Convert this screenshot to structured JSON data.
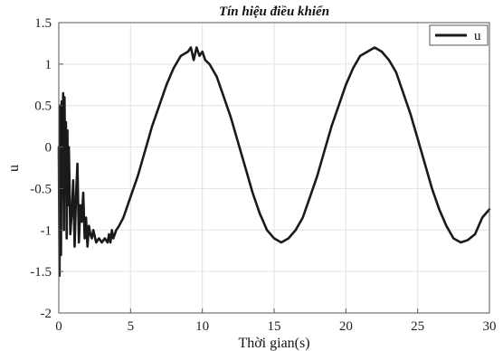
{
  "chart_data": {
    "type": "line",
    "title": "Tín hiệu điều khiển",
    "xlabel": "Thời gian(s)",
    "ylabel": "u",
    "xlim": [
      0,
      30
    ],
    "ylim": [
      -2,
      1.5
    ],
    "xticks": [
      0,
      5,
      10,
      15,
      20,
      25,
      30
    ],
    "yticks": [
      -2,
      -1.5,
      -1,
      -0.5,
      0,
      0.5,
      1,
      1.5
    ],
    "xtick_labels": [
      "0",
      "5",
      "10",
      "15",
      "20",
      "25",
      "30"
    ],
    "ytick_labels": [
      "-2",
      "-1.5",
      "-1",
      "-0.5",
      "0",
      "0.5",
      "1",
      "1.5"
    ],
    "grid": true,
    "legend_position": "top-right",
    "series": [
      {
        "name": "u",
        "color": "#1a1a1a",
        "x": [
          0,
          0.05,
          0.1,
          0.15,
          0.2,
          0.25,
          0.3,
          0.35,
          0.4,
          0.45,
          0.5,
          0.55,
          0.6,
          0.65,
          0.7,
          0.75,
          0.8,
          0.9,
          1.0,
          1.1,
          1.2,
          1.3,
          1.4,
          1.5,
          1.6,
          1.7,
          1.8,
          1.9,
          2.0,
          2.1,
          2.2,
          2.3,
          2.4,
          2.6,
          2.8,
          3.0,
          3.2,
          3.4,
          3.5,
          3.6,
          3.7,
          3.8,
          4.0,
          4.2,
          4.5,
          5.0,
          5.5,
          6.0,
          6.5,
          7.0,
          7.5,
          8.0,
          8.5,
          9.0,
          9.2,
          9.4,
          9.6,
          9.8,
          10.0,
          10.2,
          10.5,
          11.0,
          11.5,
          12.0,
          12.5,
          13.0,
          13.5,
          14.0,
          14.5,
          15.0,
          15.5,
          16.0,
          16.5,
          17.0,
          17.5,
          18.0,
          18.5,
          19.0,
          19.5,
          20.0,
          20.5,
          21.0,
          21.5,
          22.0,
          22.5,
          23.0,
          23.5,
          24.0,
          24.5,
          25.0,
          25.5,
          26.0,
          26.5,
          27.0,
          27.5,
          28.0,
          28.5,
          29.0,
          29.5,
          30.0
        ],
        "y": [
          0,
          -1.55,
          0.5,
          -1.3,
          0.55,
          -0.6,
          0.65,
          -1.0,
          0.6,
          -0.3,
          0.3,
          -1.1,
          0.2,
          -0.7,
          0.0,
          -0.5,
          -1.05,
          -0.8,
          -0.4,
          -1.2,
          -0.6,
          -0.2,
          -1.15,
          -0.7,
          -0.9,
          -0.55,
          -1.1,
          -0.85,
          -1.2,
          -0.95,
          -1.05,
          -1.1,
          -1.0,
          -1.15,
          -1.1,
          -1.15,
          -1.1,
          -1.15,
          -1.05,
          -1.15,
          -1.0,
          -1.1,
          -1.0,
          -0.95,
          -0.85,
          -0.6,
          -0.35,
          -0.05,
          0.25,
          0.5,
          0.75,
          0.95,
          1.1,
          1.15,
          1.2,
          1.05,
          1.2,
          1.1,
          1.15,
          1.05,
          1.0,
          0.85,
          0.6,
          0.35,
          0.05,
          -0.25,
          -0.55,
          -0.8,
          -1.0,
          -1.1,
          -1.15,
          -1.1,
          -1.0,
          -0.85,
          -0.6,
          -0.35,
          -0.05,
          0.25,
          0.5,
          0.75,
          0.95,
          1.1,
          1.15,
          1.2,
          1.15,
          1.05,
          0.9,
          0.65,
          0.4,
          0.1,
          -0.2,
          -0.5,
          -0.75,
          -0.95,
          -1.1,
          -1.15,
          -1.12,
          -1.05,
          -0.85,
          -0.75
        ]
      }
    ]
  }
}
